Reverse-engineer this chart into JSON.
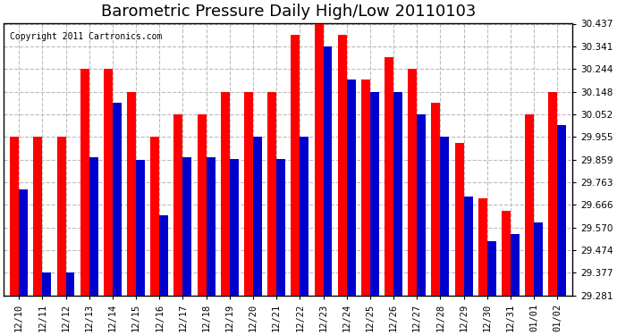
{
  "title": "Barometric Pressure Daily High/Low 20110103",
  "copyright": "Copyright 2011 Cartronics.com",
  "dates": [
    "12/10",
    "12/11",
    "12/12",
    "12/13",
    "12/14",
    "12/15",
    "12/16",
    "12/17",
    "12/18",
    "12/19",
    "12/20",
    "12/21",
    "12/22",
    "12/23",
    "12/24",
    "12/25",
    "12/26",
    "12/27",
    "12/28",
    "12/29",
    "12/30",
    "12/31",
    "01/01",
    "01/02"
  ],
  "highs": [
    29.955,
    29.955,
    29.955,
    30.244,
    30.244,
    30.148,
    29.955,
    30.052,
    30.052,
    30.148,
    30.148,
    30.148,
    30.39,
    30.437,
    30.39,
    30.2,
    30.295,
    30.244,
    30.1,
    29.93,
    29.695,
    29.64,
    30.052,
    30.148
  ],
  "lows": [
    29.73,
    29.377,
    29.377,
    29.87,
    30.1,
    29.859,
    29.62,
    29.87,
    29.87,
    29.86,
    29.955,
    29.86,
    29.955,
    30.341,
    30.2,
    30.148,
    30.148,
    30.052,
    29.955,
    29.7,
    29.51,
    29.54,
    29.59,
    30.005
  ],
  "bar_color_high": "#ff0000",
  "bar_color_low": "#0000cc",
  "background_color": "#ffffff",
  "grid_color": "#bbbbbb",
  "ymin": 29.281,
  "ymax": 30.437,
  "yticks": [
    29.281,
    29.377,
    29.474,
    29.57,
    29.666,
    29.763,
    29.859,
    29.955,
    30.052,
    30.148,
    30.244,
    30.341,
    30.437
  ],
  "title_fontsize": 13,
  "tick_fontsize": 7.5,
  "copyright_fontsize": 7
}
